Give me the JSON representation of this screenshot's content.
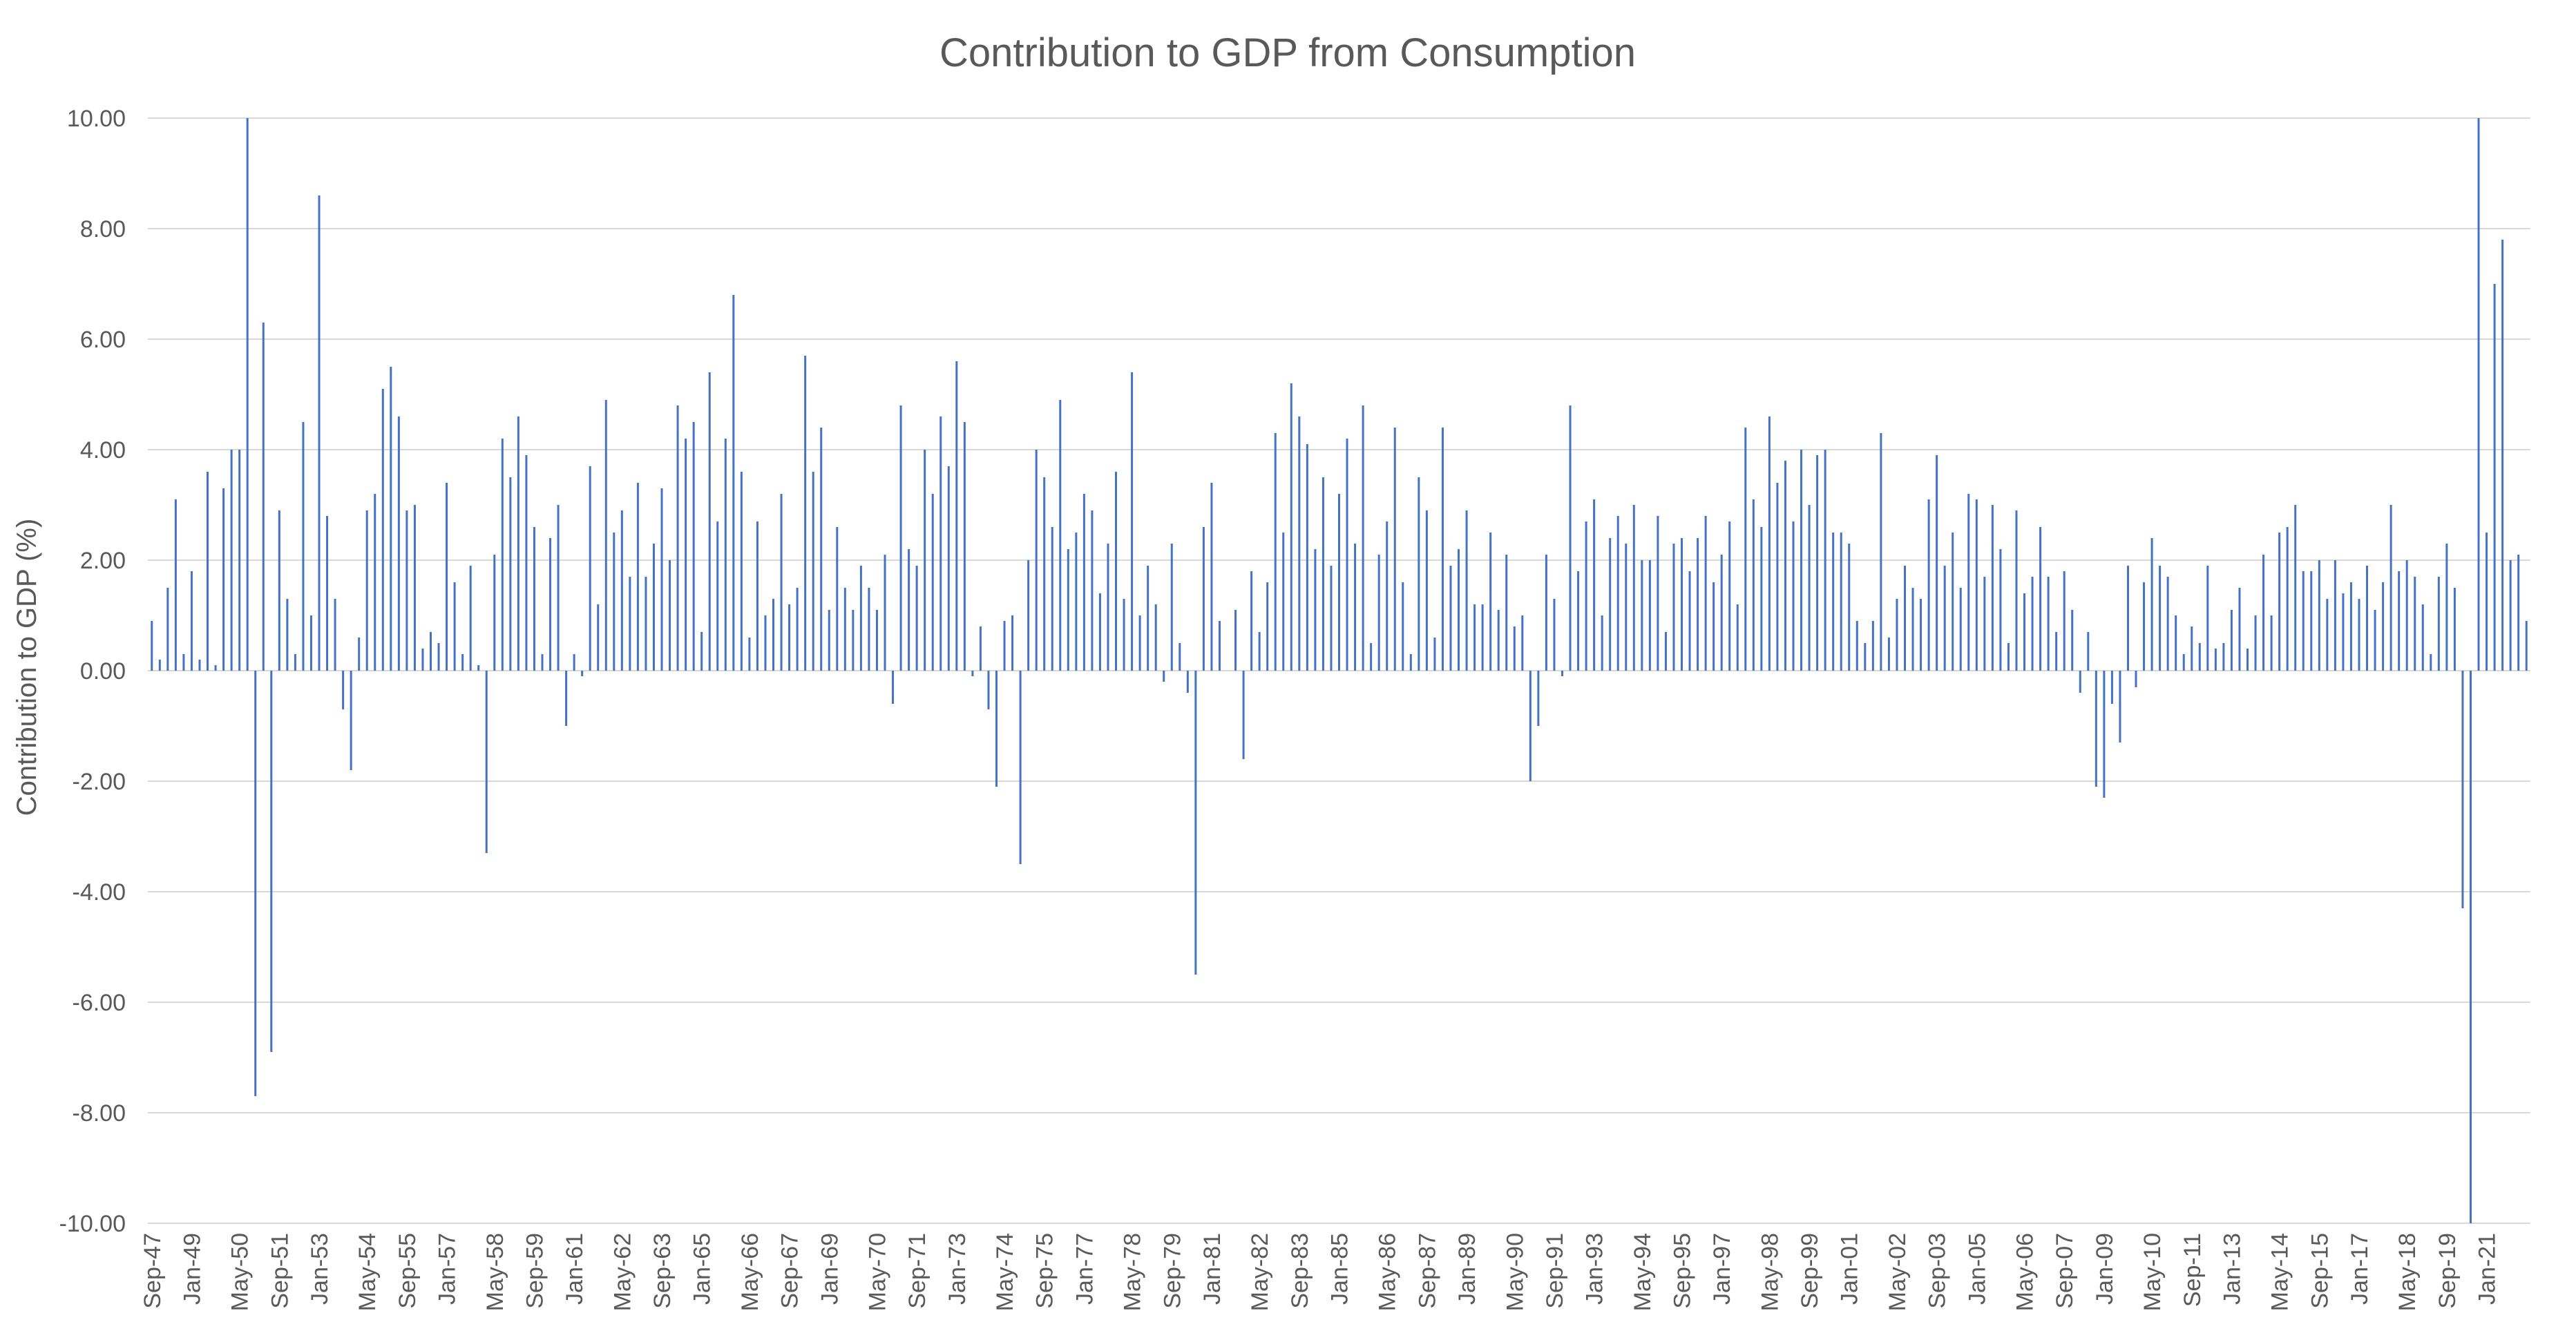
{
  "chart_data": {
    "type": "bar",
    "title": "Contribution to GDP from Consumption",
    "xlabel": "",
    "ylabel": "Contribution to GDP (%)",
    "ylim": [
      -10,
      10
    ],
    "grid": true,
    "legend": "none",
    "colors": {
      "bar": "#4472c4",
      "grid": "#d9d9d9",
      "text": "#595959"
    },
    "yticks": [
      "10.00",
      "8.00",
      "6.00",
      "4.00",
      "2.00",
      "0.00",
      "-2.00",
      "-4.00",
      "-6.00",
      "-8.00",
      "-10.00"
    ],
    "xticks": [
      {
        "label": "Sep-47",
        "index": 0
      },
      {
        "label": "Jan-49",
        "index": 5
      },
      {
        "label": "May-50",
        "index": 11
      },
      {
        "label": "Sep-51",
        "index": 16
      },
      {
        "label": "Jan-53",
        "index": 21
      },
      {
        "label": "May-54",
        "index": 27
      },
      {
        "label": "Sep-55",
        "index": 32
      },
      {
        "label": "Jan-57",
        "index": 37
      },
      {
        "label": "May-58",
        "index": 43
      },
      {
        "label": "Sep-59",
        "index": 48
      },
      {
        "label": "Jan-61",
        "index": 53
      },
      {
        "label": "May-62",
        "index": 59
      },
      {
        "label": "Sep-63",
        "index": 64
      },
      {
        "label": "Jan-65",
        "index": 69
      },
      {
        "label": "May-66",
        "index": 75
      },
      {
        "label": "Sep-67",
        "index": 80
      },
      {
        "label": "Jan-69",
        "index": 85
      },
      {
        "label": "May-70",
        "index": 91
      },
      {
        "label": "Sep-71",
        "index": 96
      },
      {
        "label": "Jan-73",
        "index": 101
      },
      {
        "label": "May-74",
        "index": 107
      },
      {
        "label": "Sep-75",
        "index": 112
      },
      {
        "label": "Jan-77",
        "index": 117
      },
      {
        "label": "May-78",
        "index": 123
      },
      {
        "label": "Sep-79",
        "index": 128
      },
      {
        "label": "Jan-81",
        "index": 133
      },
      {
        "label": "May-82",
        "index": 139
      },
      {
        "label": "Sep-83",
        "index": 144
      },
      {
        "label": "Jan-85",
        "index": 149
      },
      {
        "label": "May-86",
        "index": 155
      },
      {
        "label": "Sep-87",
        "index": 160
      },
      {
        "label": "Jan-89",
        "index": 165
      },
      {
        "label": "May-90",
        "index": 171
      },
      {
        "label": "Sep-91",
        "index": 176
      },
      {
        "label": "Jan-93",
        "index": 181
      },
      {
        "label": "May-94",
        "index": 187
      },
      {
        "label": "Sep-95",
        "index": 192
      },
      {
        "label": "Jan-97",
        "index": 197
      },
      {
        "label": "May-98",
        "index": 203
      },
      {
        "label": "Sep-99",
        "index": 208
      },
      {
        "label": "Jan-01",
        "index": 213
      },
      {
        "label": "May-02",
        "index": 219
      },
      {
        "label": "Sep-03",
        "index": 224
      },
      {
        "label": "Jan-05",
        "index": 229
      },
      {
        "label": "May-06",
        "index": 235
      },
      {
        "label": "Sep-07",
        "index": 240
      },
      {
        "label": "Jan-09",
        "index": 245
      },
      {
        "label": "May-10",
        "index": 251
      },
      {
        "label": "Sep-11",
        "index": 256
      },
      {
        "label": "Jan-13",
        "index": 261
      },
      {
        "label": "May-14",
        "index": 267
      },
      {
        "label": "Sep-15",
        "index": 272
      },
      {
        "label": "Jan-17",
        "index": 277
      },
      {
        "label": "May-18",
        "index": 283
      },
      {
        "label": "Sep-19",
        "index": 288
      },
      {
        "label": "Jan-21",
        "index": 293
      }
    ],
    "values": [
      0.9,
      0.2,
      1.5,
      3.1,
      0.3,
      1.8,
      0.2,
      3.6,
      0.1,
      3.3,
      4.0,
      4.0,
      10.0,
      -7.7,
      6.3,
      -6.9,
      2.9,
      1.3,
      0.3,
      4.5,
      1.0,
      8.6,
      2.8,
      1.3,
      -0.7,
      -1.8,
      0.6,
      2.9,
      3.2,
      5.1,
      5.5,
      4.6,
      2.9,
      3.0,
      0.4,
      0.7,
      0.5,
      3.4,
      1.6,
      0.3,
      1.9,
      0.1,
      -3.3,
      2.1,
      4.2,
      3.5,
      4.6,
      3.9,
      2.6,
      0.3,
      2.4,
      3.0,
      -1.0,
      0.3,
      -0.1,
      3.7,
      1.2,
      4.9,
      2.5,
      2.9,
      1.7,
      3.4,
      1.7,
      2.3,
      3.3,
      2.0,
      4.8,
      4.2,
      4.5,
      0.7,
      5.4,
      2.7,
      4.2,
      6.8,
      3.6,
      0.6,
      2.7,
      1.0,
      1.3,
      3.2,
      1.2,
      1.5,
      5.7,
      3.6,
      4.4,
      1.1,
      2.6,
      1.5,
      1.1,
      1.9,
      1.5,
      1.1,
      2.1,
      -0.6,
      4.8,
      2.2,
      1.9,
      4.0,
      3.2,
      4.6,
      3.7,
      5.6,
      4.5,
      -0.1,
      0.8,
      -0.7,
      -2.1,
      0.9,
      1.0,
      -3.5,
      2.0,
      4.0,
      3.5,
      2.6,
      4.9,
      2.2,
      2.5,
      3.2,
      2.9,
      1.4,
      2.3,
      3.6,
      1.3,
      5.4,
      1.0,
      1.9,
      1.2,
      -0.2,
      2.3,
      0.5,
      -0.4,
      -5.5,
      2.6,
      3.4,
      0.9,
      0.0,
      1.1,
      -1.6,
      1.8,
      0.7,
      1.6,
      4.3,
      2.5,
      5.2,
      4.6,
      4.1,
      2.2,
      3.5,
      1.9,
      3.2,
      4.2,
      2.3,
      4.8,
      0.5,
      2.1,
      2.7,
      4.4,
      1.6,
      0.3,
      3.5,
      2.9,
      0.6,
      4.4,
      1.9,
      2.2,
      2.9,
      1.2,
      1.2,
      2.5,
      1.1,
      2.1,
      0.8,
      1.0,
      -2.0,
      -1.0,
      2.1,
      1.3,
      -0.1,
      4.8,
      1.8,
      2.7,
      3.1,
      1.0,
      2.4,
      2.8,
      2.3,
      3.0,
      2.0,
      2.0,
      2.8,
      0.7,
      2.3,
      2.4,
      1.8,
      2.4,
      2.8,
      1.6,
      2.1,
      2.7,
      1.2,
      4.4,
      3.1,
      2.6,
      4.6,
      3.4,
      3.8,
      2.7,
      4.0,
      3.0,
      3.9,
      4.0,
      2.5,
      2.5,
      2.3,
      0.9,
      0.5,
      0.9,
      4.3,
      0.6,
      1.3,
      1.9,
      1.5,
      1.3,
      3.1,
      3.9,
      1.9,
      2.5,
      1.5,
      3.2,
      3.1,
      1.7,
      3.0,
      2.2,
      0.5,
      2.9,
      1.4,
      1.7,
      2.6,
      1.7,
      0.7,
      1.8,
      1.1,
      -0.4,
      0.7,
      -2.1,
      -2.3,
      -0.6,
      -1.3,
      1.9,
      -0.3,
      1.6,
      2.4,
      1.9,
      1.7,
      1.0,
      0.3,
      0.8,
      0.5,
      1.9,
      0.4,
      0.5,
      1.1,
      1.5,
      0.4,
      1.0,
      2.1,
      1.0,
      2.5,
      2.6,
      3.0,
      1.8,
      1.8,
      2.0,
      1.3,
      2.0,
      1.4,
      1.6,
      1.3,
      1.9,
      1.1,
      1.6,
      3.0,
      1.8,
      2.0,
      1.7,
      1.2,
      0.3,
      1.7,
      2.3,
      1.5,
      -4.3,
      -10.0,
      10.0,
      2.5,
      7.0,
      7.8,
      2.0,
      2.1,
      0.9
    ]
  }
}
